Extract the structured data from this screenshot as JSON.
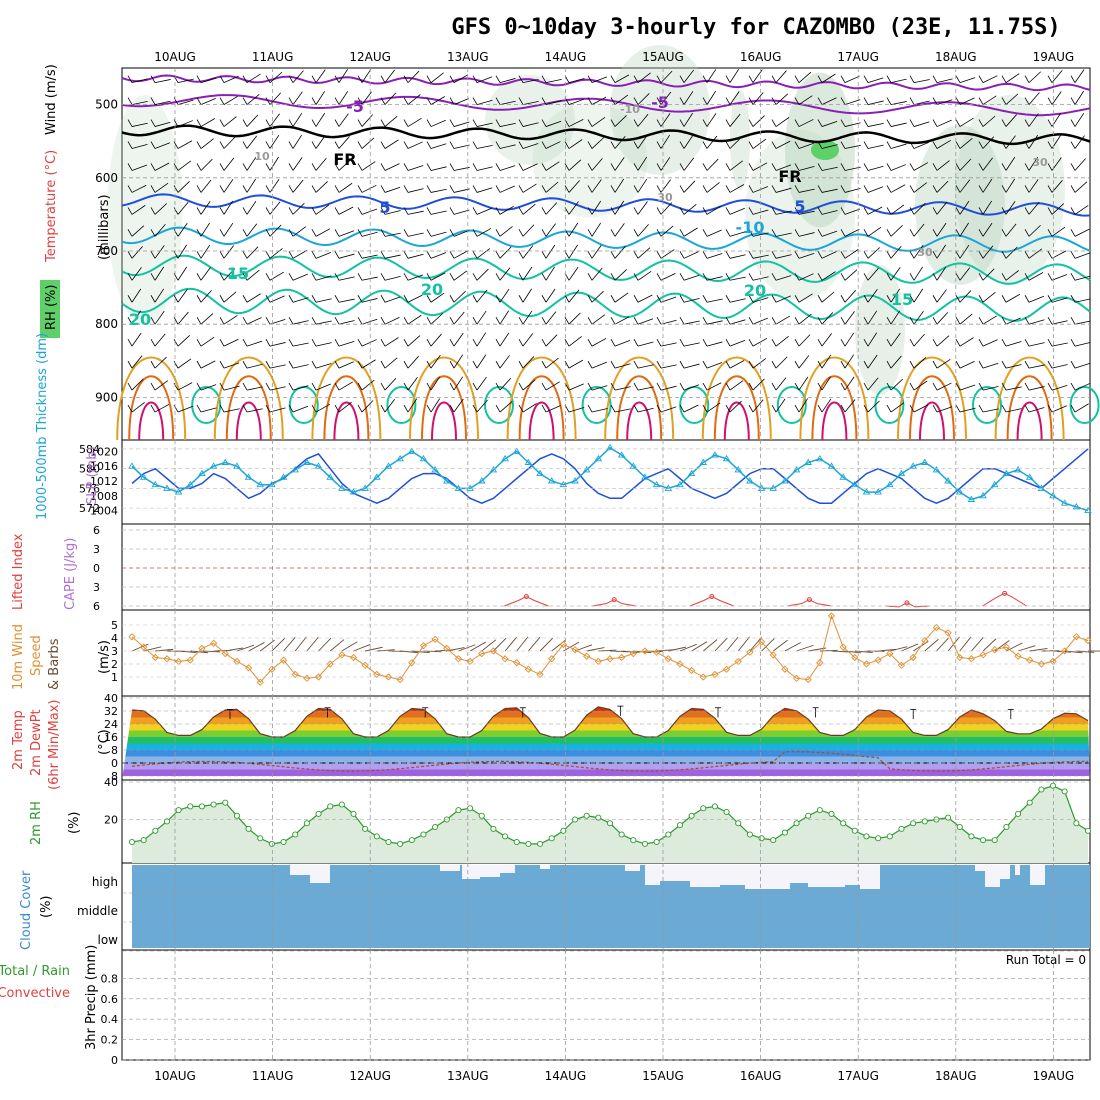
{
  "title": "GFS 0~10day 3-hourly for CAZOMBO (23E, 11.75S)",
  "colors": {
    "purple": "#8a1fb5",
    "blue": "#1f4fd8",
    "cyan": "#1ba6d8",
    "teal": "#12c2a0",
    "orange": "#e0a020",
    "darkorange": "#e06a10",
    "magenta": "#d0106a",
    "rh_fill": "#cfe4cf",
    "cloud": "#6aaad4",
    "lifted": "#e04040",
    "cape": "#b070d0",
    "wind": "#e09030",
    "rh2m": "#2e9a2e"
  },
  "chart_data": [
    {
      "type": "area",
      "panel": "upper-air",
      "x": [
        "10AUG",
        "11AUG",
        "12AUG",
        "13AUG",
        "14AUG",
        "15AUG",
        "16AUG",
        "17AUG",
        "18AUG",
        "19AUG"
      ],
      "ylabel": "(millibars)",
      "ylabel_parts": [
        "Wind (m/s)",
        "Temperature (°C)",
        "RH (%)"
      ],
      "y_ticks": [
        500,
        600,
        700,
        800,
        900
      ],
      "ylim": [
        1000,
        450
      ],
      "contour_labels": [
        "-5",
        "-5",
        "-10",
        "FR",
        "FR",
        "5",
        "5",
        "-10",
        "15",
        "20",
        "20",
        "15",
        "20",
        "10",
        "30",
        "30",
        "30"
      ],
      "rh_legend_label": "RH (%)"
    },
    {
      "type": "line",
      "panel": "thickness-slp",
      "ylabel_left": "1000-500mb Thickness (dm)",
      "ylabel_right": "SLP (mb)",
      "y_ticks_left": [
        572,
        576,
        580,
        584
      ],
      "y_ticks_right": [
        1004,
        1008,
        1012,
        1016,
        1020
      ],
      "series": [
        {
          "name": "1000-500mb Thickness (dm)",
          "values": [
            577,
            579,
            580,
            578,
            576,
            576,
            577,
            579,
            578,
            576,
            574,
            575,
            577,
            578,
            580,
            582,
            583,
            580,
            577,
            575,
            574,
            573,
            574,
            576,
            578,
            579,
            579,
            578,
            576,
            574,
            573,
            574,
            576,
            578,
            580,
            582,
            583,
            582,
            580,
            577,
            575,
            574,
            574,
            576,
            578,
            579,
            580,
            578,
            576,
            575,
            574,
            575,
            577,
            579,
            580,
            580,
            578,
            576,
            574,
            573,
            573,
            575,
            577,
            579,
            580,
            579,
            578,
            576,
            574,
            573,
            574,
            576,
            578,
            580,
            580,
            579,
            578,
            577,
            576,
            578,
            580,
            582,
            584
          ]
        },
        {
          "name": "SLP (mb)",
          "values": [
            1016,
            1013,
            1011,
            1010,
            1009,
            1011,
            1014,
            1016,
            1017,
            1016,
            1013,
            1011,
            1011,
            1013,
            1015,
            1017,
            1016,
            1013,
            1010,
            1009,
            1010,
            1013,
            1016,
            1018,
            1020,
            1018,
            1015,
            1012,
            1010,
            1010,
            1012,
            1015,
            1018,
            1020,
            1017,
            1014,
            1012,
            1011,
            1012,
            1015,
            1018,
            1021,
            1019,
            1016,
            1013,
            1011,
            1010,
            1011,
            1014,
            1017,
            1019,
            1018,
            1015,
            1012,
            1010,
            1010,
            1012,
            1015,
            1017,
            1018,
            1016,
            1013,
            1011,
            1009,
            1009,
            1011,
            1014,
            1016,
            1017,
            1015,
            1012,
            1009,
            1007,
            1008,
            1011,
            1014,
            1015,
            1013,
            1010,
            1008,
            1006,
            1005,
            1004
          ]
        }
      ]
    },
    {
      "type": "line",
      "panel": "lifted-cape",
      "ylabel_left": "Lifted Index",
      "ylabel_right": "CAPE (J/kg)",
      "y_ticks": [
        -6,
        -3,
        0,
        3,
        6
      ],
      "ylim": [
        6,
        -6
      ],
      "series": [
        {
          "name": "Lifted Index",
          "peaks_at_day": [
            3.6,
            4.5,
            5.5,
            6.5,
            7.5,
            8.5
          ],
          "peak_values": [
            4.5,
            5,
            4.5,
            5,
            5.5,
            4
          ]
        }
      ]
    },
    {
      "type": "line",
      "panel": "wind-10m",
      "ylabel": "10m Wind Speed & Barbs (m/s)",
      "y_ticks": [
        1,
        2,
        3,
        4,
        5
      ],
      "ylim": [
        0,
        6
      ],
      "series": [
        {
          "name": "10m Wind Speed",
          "values": [
            4.1,
            3.3,
            2.5,
            2.4,
            2.2,
            2.3,
            3.2,
            3.6,
            2.8,
            2.2,
            1.7,
            0.6,
            1.6,
            2.3,
            1.2,
            0.9,
            1.0,
            2.0,
            2.7,
            2.5,
            1.9,
            1.2,
            1.0,
            0.8,
            2.1,
            3.4,
            3.9,
            3.2,
            2.4,
            2.2,
            2.8,
            3.0,
            2.4,
            2.1,
            1.6,
            1.2,
            2.4,
            3.5,
            3.1,
            2.6,
            2.2,
            2.4,
            2.5,
            2.8,
            3.0,
            2.9,
            2.4,
            2.0,
            1.5,
            1.0,
            1.2,
            1.6,
            2.2,
            2.9,
            3.7,
            2.7,
            1.6,
            0.9,
            0.8,
            2.1,
            5.7,
            3.3,
            2.5,
            2.0,
            2.3,
            2.8,
            1.9,
            2.5,
            3.8,
            4.8,
            4.4,
            2.5,
            2.4,
            2.7,
            3.1,
            3.3,
            2.6,
            2.3,
            2.0,
            2.2,
            3.0,
            4.1,
            3.8
          ]
        }
      ]
    },
    {
      "type": "area",
      "panel": "temp-2m",
      "ylabel": "2m Temp 2m DewPt (6hr Min/Max) (°C)",
      "y_ticks": [
        -8,
        0,
        8,
        16,
        24,
        32,
        40
      ],
      "ylim": [
        -8,
        40
      ],
      "series": [
        {
          "name": "2m Temp",
          "daily_min": [
            17,
            16,
            16,
            16,
            16,
            16,
            17,
            17,
            17,
            18
          ],
          "daily_max": [
            33,
            34,
            34,
            34,
            35,
            34,
            34,
            33,
            33,
            31
          ]
        },
        {
          "name": "2m DewPt",
          "values_range": [
            -4,
            7
          ]
        }
      ]
    },
    {
      "type": "area",
      "panel": "rh-2m",
      "ylabel": "2m RH (%)",
      "y_ticks": [
        20,
        40
      ],
      "ylim": [
        0,
        40
      ],
      "series": [
        {
          "name": "2m RH",
          "values": [
            8,
            9,
            14,
            19,
            25,
            27,
            27,
            28,
            29,
            22,
            15,
            10,
            7,
            8,
            12,
            18,
            23,
            27,
            28,
            23,
            15,
            11,
            8,
            7,
            9,
            12,
            16,
            20,
            25,
            26,
            22,
            15,
            11,
            8,
            7,
            7,
            10,
            14,
            20,
            22,
            21,
            18,
            12,
            9,
            7,
            8,
            12,
            17,
            22,
            26,
            27,
            24,
            18,
            12,
            10,
            9,
            13,
            18,
            22,
            25,
            23,
            18,
            14,
            11,
            10,
            11,
            15,
            18,
            19,
            20,
            21,
            16,
            11,
            9,
            9,
            16,
            23,
            29,
            36,
            38,
            35,
            18,
            14
          ]
        }
      ]
    },
    {
      "type": "bar",
      "panel": "cloud-cover",
      "ylabel": "Cloud Cover (%)",
      "levels": [
        "high",
        "middle",
        "low"
      ]
    },
    {
      "type": "bar",
      "panel": "precip",
      "ylabel": "3hr Precip (mm)",
      "ylabel_left": "Total / Rain Convective",
      "y_ticks": [
        0,
        0.2,
        0.4,
        0.6,
        0.8
      ],
      "ylim": [
        0,
        1
      ],
      "annotation": "Run Total = 0"
    }
  ]
}
